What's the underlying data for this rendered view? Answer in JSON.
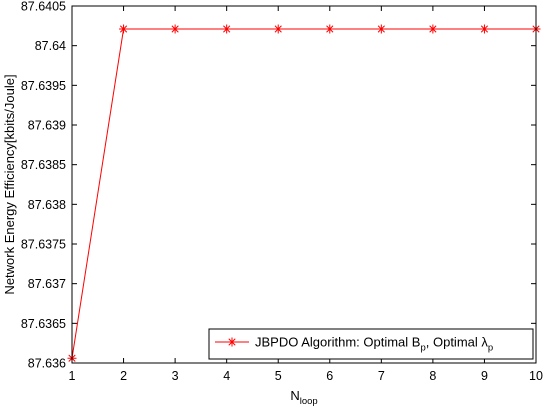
{
  "chart_data": {
    "type": "line",
    "title": "",
    "xlabel": {
      "main": "N",
      "sub": "loop"
    },
    "ylabel": "Network Energy Efficiency[kbits/Joule]",
    "xlim": [
      1,
      10
    ],
    "ylim": [
      87.636,
      87.6405
    ],
    "x_ticks": [
      "1",
      "2",
      "3",
      "4",
      "5",
      "6",
      "7",
      "8",
      "9",
      "10"
    ],
    "y_ticks": [
      "87.636",
      "87.6365",
      "87.637",
      "87.6375",
      "87.638",
      "87.6385",
      "87.639",
      "87.6395",
      "87.64",
      "87.6405"
    ],
    "grid": false,
    "legend_position": "bottom-right",
    "series": [
      {
        "name": "JBPDO Algorithm: Optimal B_p, Optimal λ_p",
        "legend_parts": {
          "prefix": "JBPDO Algorithm: Optimal B",
          "sub1": "p",
          "middle": ", Optimal λ",
          "sub2": "p"
        },
        "color": "#ff0000",
        "marker": "asterisk",
        "x": [
          1,
          2,
          3,
          4,
          5,
          6,
          7,
          8,
          9,
          10
        ],
        "y": [
          87.63606,
          87.64021,
          87.64021,
          87.64021,
          87.64021,
          87.64021,
          87.64021,
          87.64021,
          87.64021,
          87.64021
        ]
      }
    ]
  }
}
